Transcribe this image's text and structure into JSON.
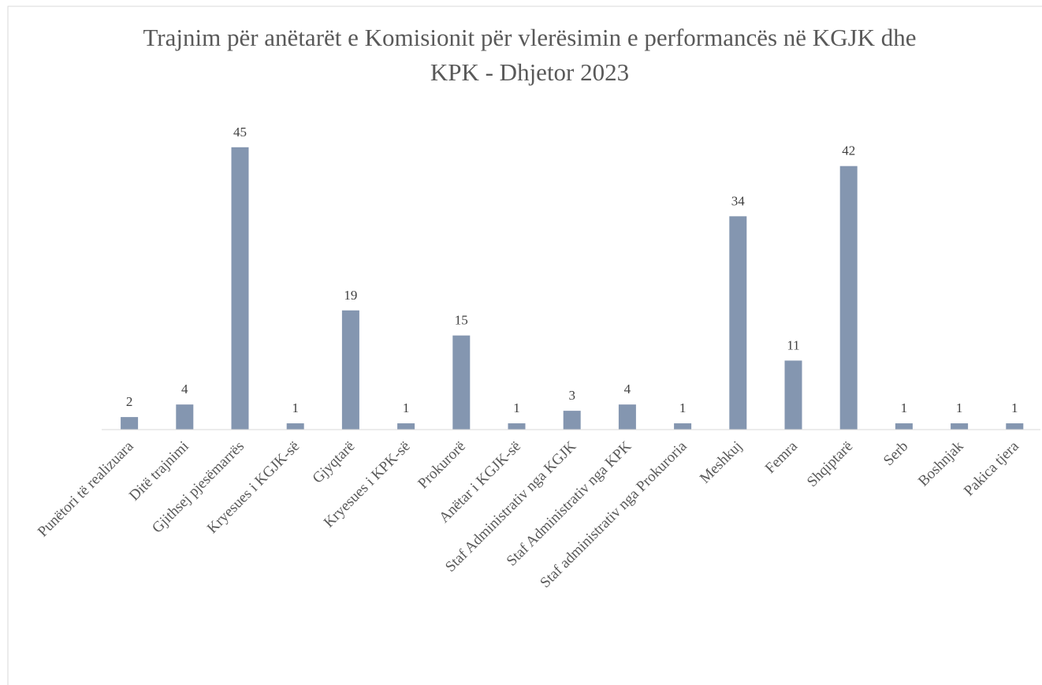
{
  "chart_data": {
    "type": "bar",
    "title": [
      "Trajnim për anëtarët e Komisionit për vlerësimin  e performancës në KGJK dhe",
      "KPK - Dhjetor 2023"
    ],
    "categories": [
      "Punëtori të realizuara",
      "Ditë trajnimi",
      "Gjithsej pjesëmarrës",
      "Kryesues i KGJK-së",
      "Gjyqtarë",
      "Kryesues i KPK-së",
      "Prokurorë",
      "Anëtar i KGJK-së",
      "Staf Administrativ nga KGJK",
      "Staf Administrativ nga KPK",
      "Staf administrativ nga Prokuroria",
      "Meshkuj",
      "Femra",
      "Shqiptarë",
      "Serb",
      "Boshnjak",
      "Pakica tjera"
    ],
    "values": [
      2,
      4,
      45,
      1,
      19,
      1,
      15,
      1,
      3,
      4,
      1,
      34,
      11,
      42,
      1,
      1,
      1
    ],
    "color": "#8496b0",
    "ylim": [
      0,
      50
    ]
  }
}
